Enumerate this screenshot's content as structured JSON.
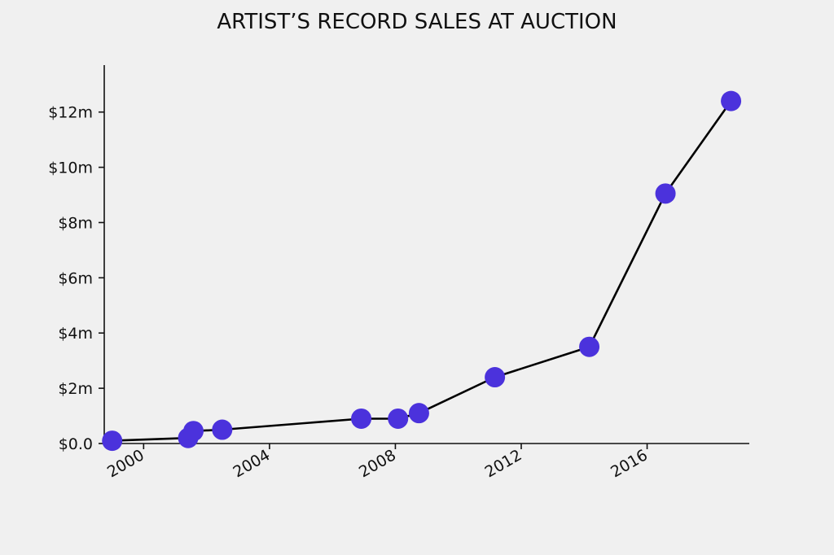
{
  "chart_data": {
    "type": "line",
    "title": "ARTIST’S RECORD SALES AT AUCTION",
    "xlabel": "",
    "ylabel": "",
    "grid": false,
    "xlim": [
      "1998-10-01",
      "2019-04-01"
    ],
    "ylim": [
      0,
      13.7
    ],
    "x_ticks": [
      {
        "value": "2000-01-01",
        "label": "2000"
      },
      {
        "value": "2004-01-01",
        "label": "2004"
      },
      {
        "value": "2008-01-01",
        "label": "2008"
      },
      {
        "value": "2012-01-01",
        "label": "2012"
      },
      {
        "value": "2016-01-01",
        "label": "2016"
      }
    ],
    "y_ticks": [
      {
        "value": 0,
        "label": "$0.0"
      },
      {
        "value": 2,
        "label": "$2m"
      },
      {
        "value": 4,
        "label": "$4m"
      },
      {
        "value": 6,
        "label": "$6m"
      },
      {
        "value": 8,
        "label": "$8m"
      },
      {
        "value": 10,
        "label": "$10m"
      },
      {
        "value": 12,
        "label": "$12m"
      }
    ],
    "x": [
      "1999-01-01",
      "2001-06-01",
      "2001-08-01",
      "2002-07-01",
      "2006-12-01",
      "2008-02-01",
      "2008-10-01",
      "2011-03-01",
      "2014-03-01",
      "2016-08-01",
      "2018-09-01"
    ],
    "y": [
      0.1,
      0.2,
      0.45,
      0.5,
      0.9,
      0.9,
      1.1,
      2.4,
      3.5,
      9.05,
      12.4
    ],
    "colors": {
      "marker": "#4b32dc",
      "line": "#000000",
      "axis": "#111111",
      "background": "#f0f0f0"
    }
  }
}
